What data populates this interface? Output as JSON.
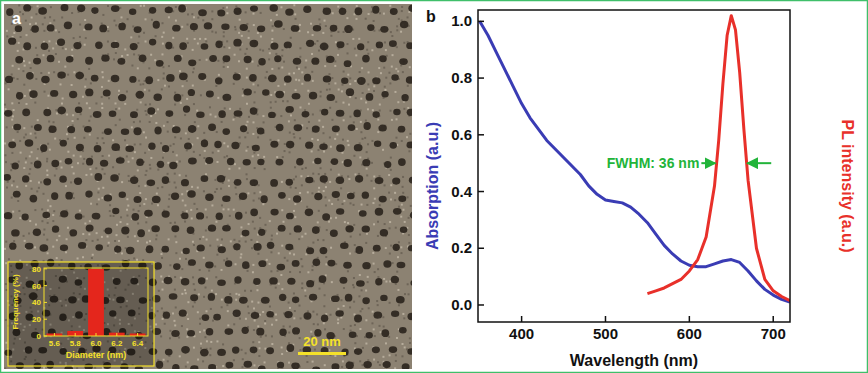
{
  "chart_data": [
    {
      "type": "bar",
      "annotations": [
        "a",
        "20 nm"
      ],
      "xlabel": "Diameter (nm)",
      "ylabel": "Frequency (%)",
      "categories": [
        "5.6",
        "5.8",
        "6.0",
        "6.2",
        "6.4"
      ],
      "values": [
        3,
        6,
        80,
        4,
        3
      ],
      "color": "#e4261c",
      "ylim": [
        0,
        81
      ],
      "yticks": [
        0,
        20,
        40,
        60,
        80
      ]
    },
    {
      "type": "line",
      "annotations": [
        "b",
        "FWHM: 36 nm"
      ],
      "xlabel": "Wavelength (nm)",
      "ylabel": "Absorption (a.u.)",
      "y2label": "PL intensity (a.u.)",
      "xlim": [
        348,
        720
      ],
      "xticks": [
        400,
        500,
        600,
        700
      ],
      "ylim": [
        -0.06,
        1.04
      ],
      "yticks": [
        {
          "value": 0,
          "label": "0.0"
        },
        {
          "value": 0.2,
          "label": "0.2"
        },
        {
          "value": 0.4,
          "label": "0.4"
        },
        {
          "value": 0.6,
          "label": "0.6"
        },
        {
          "value": 0.8,
          "label": "0.8"
        },
        {
          "value": 1.0,
          "label": "1.0"
        }
      ],
      "y2lim": [
        -0.06,
        1.04
      ],
      "series": [
        {
          "color": "#3a3cb4",
          "axis": "y",
          "x": [
            350,
            360,
            370,
            380,
            390,
            400,
            410,
            420,
            430,
            440,
            450,
            460,
            470,
            480,
            490,
            500,
            510,
            520,
            530,
            540,
            550,
            560,
            570,
            580,
            590,
            600,
            610,
            620,
            630,
            640,
            650,
            660,
            670,
            680,
            690,
            700,
            710,
            720
          ],
          "values": [
            1.0,
            0.95,
            0.89,
            0.83,
            0.77,
            0.71,
            0.66,
            0.62,
            0.58,
            0.55,
            0.52,
            0.49,
            0.46,
            0.42,
            0.39,
            0.37,
            0.365,
            0.36,
            0.345,
            0.32,
            0.29,
            0.25,
            0.21,
            0.18,
            0.155,
            0.14,
            0.135,
            0.135,
            0.145,
            0.155,
            0.16,
            0.15,
            0.12,
            0.085,
            0.055,
            0.035,
            0.02,
            0.01
          ]
        },
        {
          "color": "#e8302a",
          "axis": "y2",
          "x": [
            550,
            560,
            570,
            580,
            590,
            600,
            610,
            620,
            630,
            635,
            640,
            645,
            650,
            655,
            660,
            665,
            670,
            680,
            690,
            700,
            710,
            720
          ],
          "values": [
            0.04,
            0.05,
            0.06,
            0.075,
            0.09,
            0.12,
            0.16,
            0.24,
            0.42,
            0.58,
            0.78,
            0.95,
            1.02,
            0.97,
            0.82,
            0.62,
            0.44,
            0.2,
            0.09,
            0.05,
            0.03,
            0.015
          ]
        }
      ]
    }
  ]
}
